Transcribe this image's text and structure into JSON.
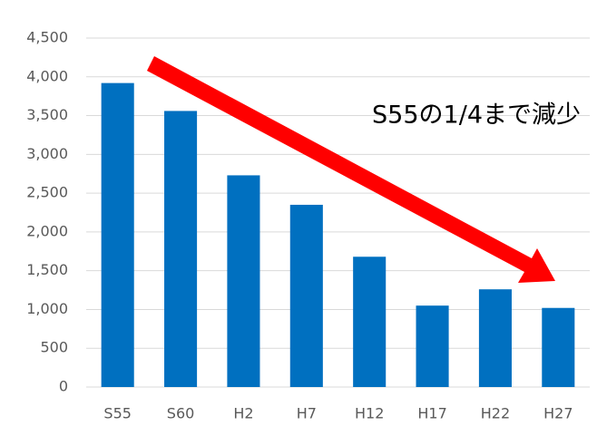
{
  "chart_data": {
    "type": "bar",
    "categories": [
      "S55",
      "S60",
      "H2",
      "H7",
      "H12",
      "H17",
      "H22",
      "H27"
    ],
    "values": [
      3920,
      3560,
      2730,
      2350,
      1680,
      1050,
      1260,
      1020
    ],
    "color": "#0070c0",
    "ylim": [
      0,
      4500
    ],
    "yticks": [
      0,
      500,
      {
        "value": 1000,
        "label": "1,000"
      },
      {
        "value": 1500,
        "label": "1,500"
      },
      {
        "value": 2000,
        "label": "2,000"
      },
      {
        "value": 2500,
        "label": "2,500"
      },
      {
        "value": 3000,
        "label": "3,000"
      },
      {
        "value": 3500,
        "label": "3,500"
      },
      {
        "value": 4000,
        "label": "4,000"
      },
      {
        "value": 4500,
        "label": "4,500"
      }
    ],
    "grid": true,
    "annotation": "S55の1/4まで減少"
  }
}
